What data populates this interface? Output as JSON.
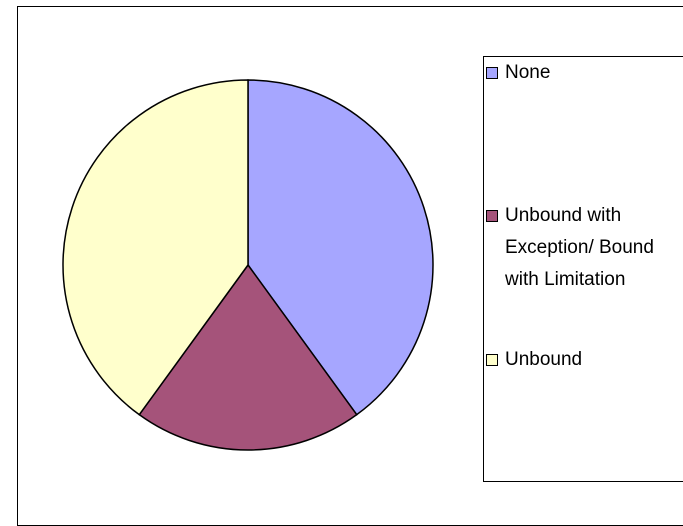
{
  "chart_data": {
    "type": "pie",
    "categories": [
      "None",
      "Unbound with Exception/ Bound with Limitation",
      "Unbound"
    ],
    "values": [
      40,
      20,
      40
    ],
    "colors": [
      "#a6a6ff",
      "#a5537a",
      "#ffffcc"
    ]
  }
}
